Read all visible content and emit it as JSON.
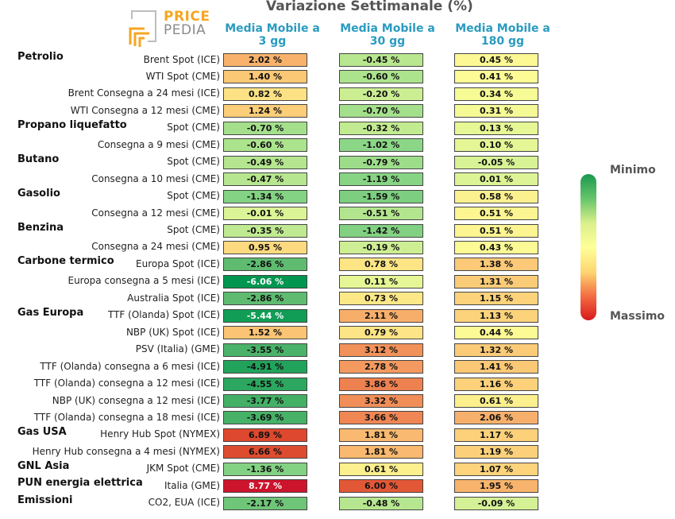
{
  "title": "Variazione Settimanale (%)",
  "logo": {
    "line1": "PRICE",
    "line2": "PEDIA"
  },
  "legend": {
    "min_label": "Minimo",
    "max_label": "Massimo"
  },
  "colors": {
    "header": "#2a9bc0",
    "scale_min": "#1a9850",
    "scale_mid": "#ffff99",
    "scale_max": "#d7191c"
  },
  "chart_data": {
    "type": "heatmap",
    "title": "Variazione Settimanale (%)",
    "columns": [
      [
        "Media Mobile a",
        "3 gg"
      ],
      [
        "Media Mobile a",
        "30 gg"
      ],
      [
        "Media Mobile a",
        "180 gg"
      ]
    ],
    "groups": [
      {
        "name": "Petrolio",
        "rows": [
          {
            "label": "Brent Spot (ICE)",
            "values": [
              2.02,
              -0.45,
              0.45
            ]
          },
          {
            "label": "WTI Spot (CME)",
            "values": [
              1.4,
              -0.6,
              0.41
            ]
          },
          {
            "label": "Brent Consegna a 24 mesi (ICE)",
            "values": [
              0.82,
              -0.2,
              0.34
            ]
          },
          {
            "label": "WTI Consegna a 12 mesi (CME)",
            "values": [
              1.24,
              -0.7,
              0.31
            ]
          }
        ]
      },
      {
        "name": "Propano liquefatto",
        "rows": [
          {
            "label": "Spot (CME)",
            "values": [
              -0.7,
              -0.32,
              0.13
            ]
          },
          {
            "label": "Consegna a 9 mesi (CME)",
            "values": [
              -0.6,
              -1.02,
              0.1
            ]
          }
        ]
      },
      {
        "name": "Butano",
        "rows": [
          {
            "label": "Spot (CME)",
            "values": [
              -0.49,
              -0.79,
              -0.05
            ]
          },
          {
            "label": "Consegna a 10 mesi (CME)",
            "values": [
              -0.47,
              -1.19,
              0.01
            ]
          }
        ]
      },
      {
        "name": "Gasolio",
        "rows": [
          {
            "label": "Spot (CME)",
            "values": [
              -1.34,
              -1.59,
              0.58
            ]
          },
          {
            "label": "Consegna a 12 mesi (CME)",
            "values": [
              -0.01,
              -0.51,
              0.51
            ]
          }
        ]
      },
      {
        "name": "Benzina",
        "rows": [
          {
            "label": "Spot (CME)",
            "values": [
              -0.35,
              -1.42,
              0.51
            ]
          },
          {
            "label": "Consegna a 24 mesi (CME)",
            "values": [
              0.95,
              -0.19,
              0.43
            ]
          }
        ]
      },
      {
        "name": "Carbone termico",
        "rows": [
          {
            "label": "Europa Spot (ICE)",
            "values": [
              -2.86,
              0.78,
              1.38
            ]
          },
          {
            "label": "Europa consegna a 5 mesi (ICE)",
            "values": [
              -6.06,
              0.11,
              1.31
            ]
          },
          {
            "label": "Australia Spot (ICE)",
            "values": [
              -2.86,
              0.73,
              1.15
            ]
          }
        ]
      },
      {
        "name": "Gas Europa",
        "rows": [
          {
            "label": "TTF (Olanda) Spot (ICE)",
            "values": [
              -5.44,
              2.11,
              1.13
            ]
          },
          {
            "label": "NBP (UK) Spot (ICE)",
            "values": [
              1.52,
              0.79,
              0.44
            ]
          },
          {
            "label": "PSV (Italia) (GME)",
            "values": [
              -3.55,
              3.12,
              1.32
            ]
          },
          {
            "label": "TTF (Olanda) consegna a 6 mesi (ICE)",
            "values": [
              -4.91,
              2.78,
              1.41
            ]
          },
          {
            "label": "TTF (Olanda) consegna a 12 mesi (ICE)",
            "values": [
              -4.55,
              3.86,
              1.16
            ]
          },
          {
            "label": "NBP (UK) consegna a 12 mesi (ICE)",
            "values": [
              -3.77,
              3.32,
              0.61
            ]
          },
          {
            "label": "TTF (Olanda) consegna a 18 mesi (ICE)",
            "values": [
              -3.69,
              3.66,
              2.06
            ]
          }
        ]
      },
      {
        "name": "Gas USA",
        "rows": [
          {
            "label": "Henry Hub Spot (NYMEX)",
            "values": [
              6.89,
              1.81,
              1.17
            ]
          },
          {
            "label": "Henry Hub consegna a 4 mesi (NYMEX)",
            "values": [
              6.66,
              1.81,
              1.19
            ]
          }
        ]
      },
      {
        "name": "GNL Asia",
        "rows": [
          {
            "label": "JKM Spot (CME)",
            "values": [
              -1.36,
              0.61,
              1.07
            ]
          }
        ]
      },
      {
        "name": "PUN energia elettrica",
        "rows": [
          {
            "label": "Italia (GME)",
            "values": [
              8.77,
              6.0,
              1.95
            ]
          }
        ]
      },
      {
        "name": "Emissioni",
        "rows": [
          {
            "label": "CO2, EUA (ICE)",
            "values": [
              -2.17,
              -0.48,
              -0.09
            ]
          }
        ]
      }
    ]
  }
}
